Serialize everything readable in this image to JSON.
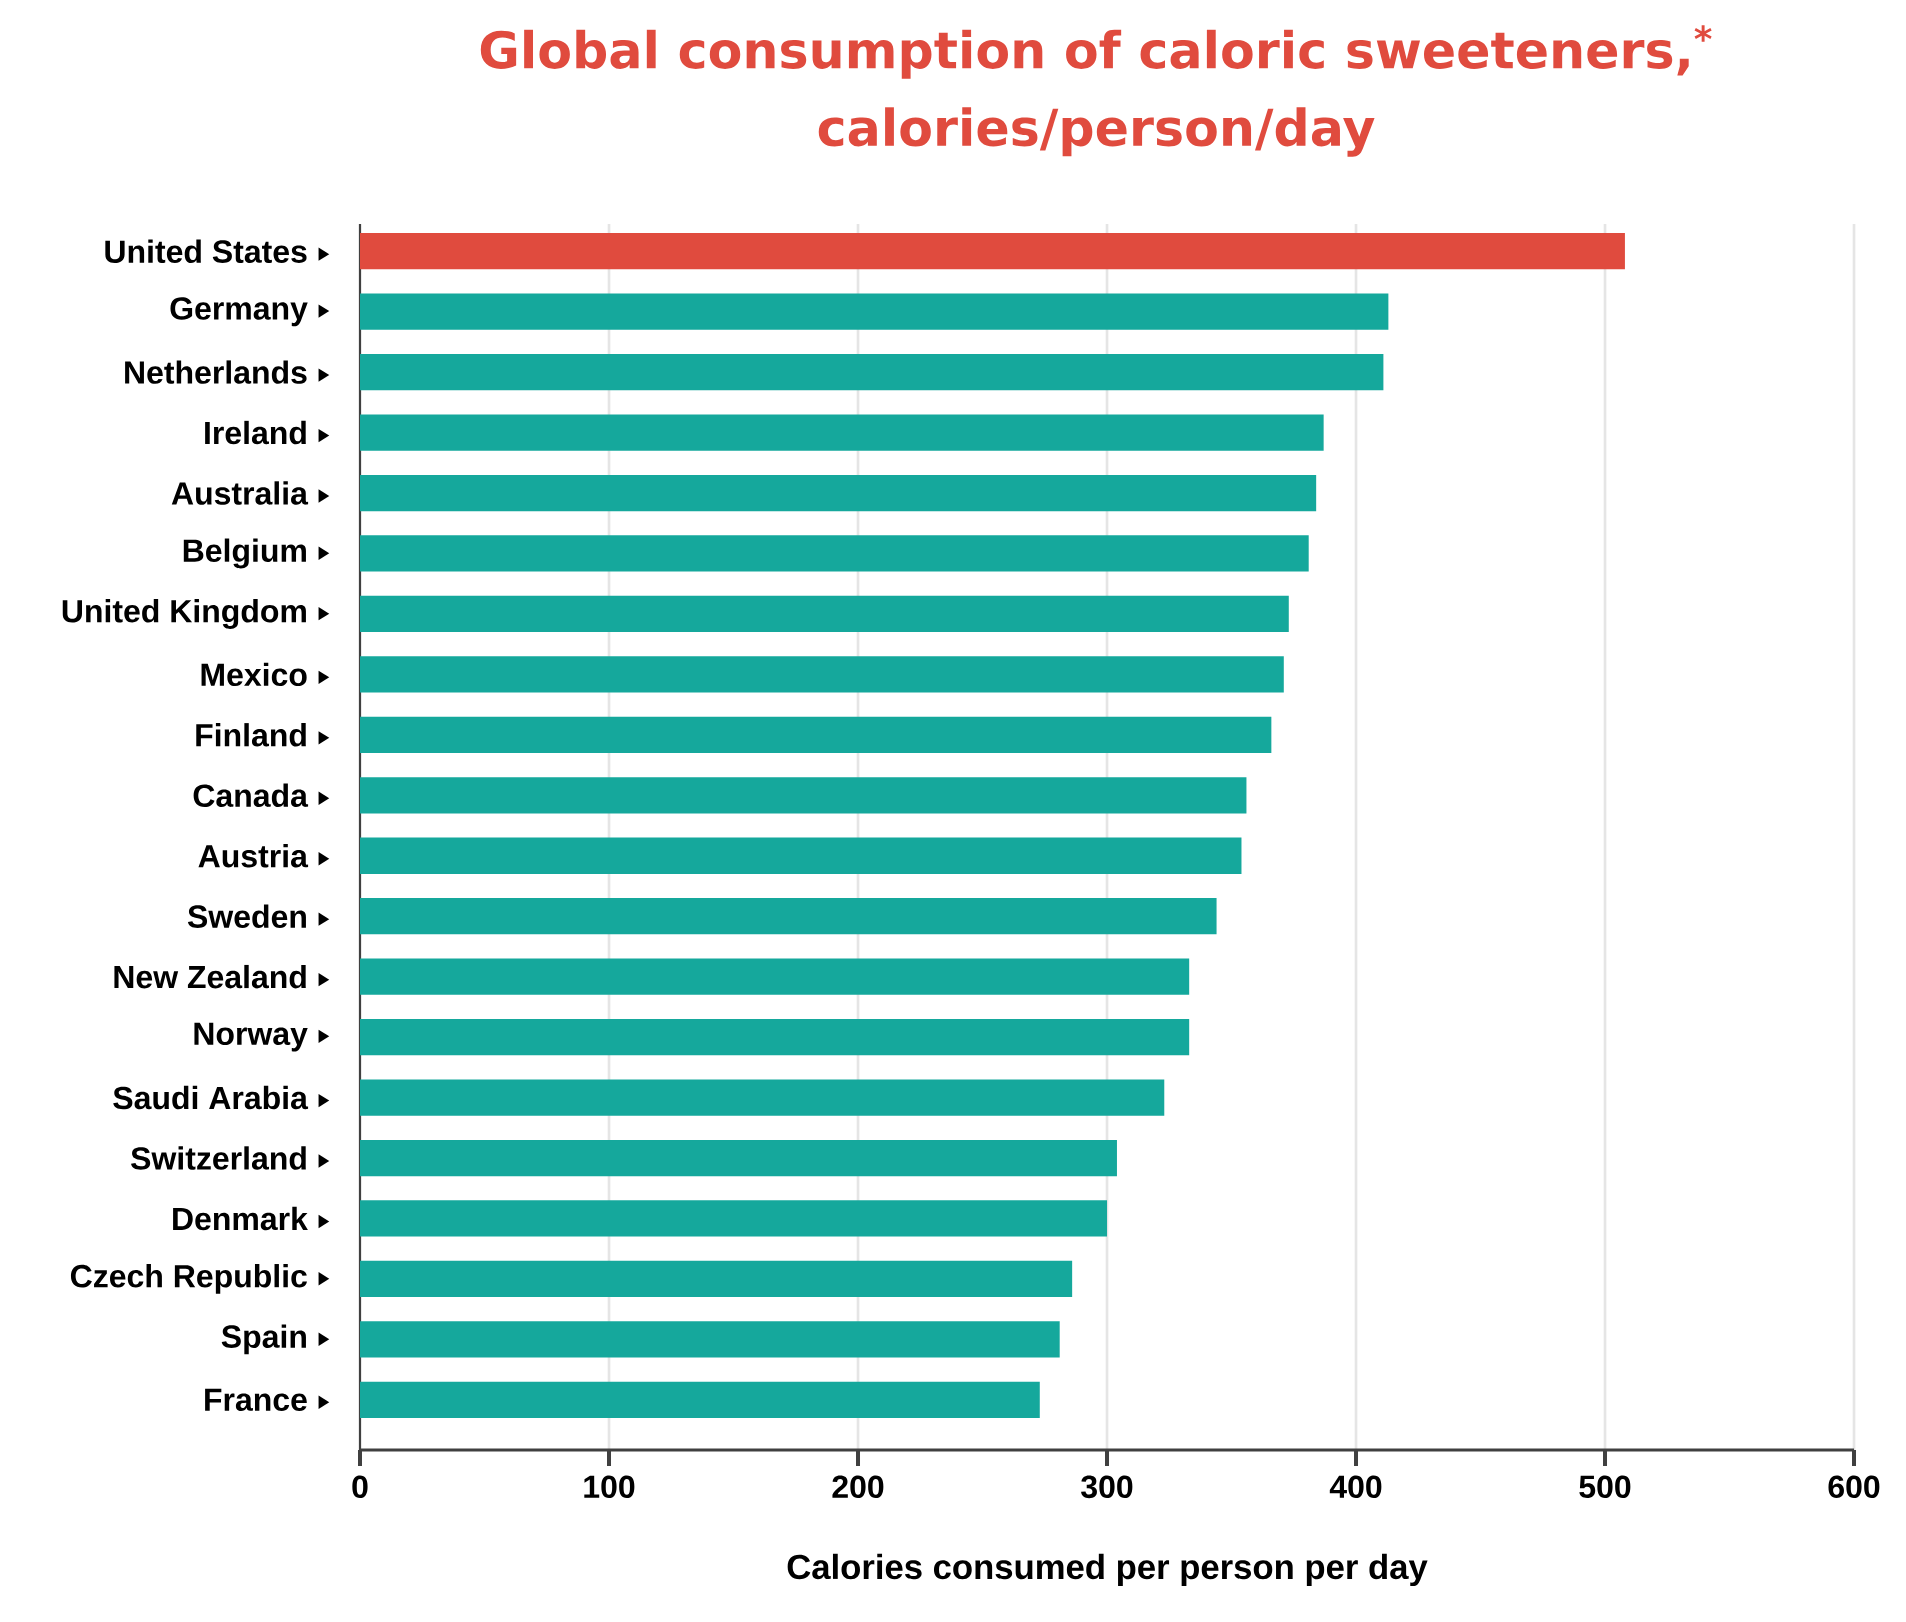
{
  "chart_data": {
    "type": "bar",
    "orientation": "horizontal",
    "title": "Global consumption of caloric sweeteners,$^{*}$",
    "subtitle": "calories/person/day",
    "xlabel": "Calories consumed per person per day",
    "categories": [
      "United States",
      "Germany",
      "Netherlands",
      "Ireland",
      "Australia",
      "Belgium",
      "United Kingdom",
      "Mexico",
      "Finland",
      "Canada",
      "Austria",
      "Sweden",
      "New Zealand",
      "Norway",
      "Saudi Arabia",
      "Switzerland",
      "Denmark",
      "Czech Republic",
      "Spain",
      "France"
    ],
    "values": [
      508,
      413,
      411,
      387,
      384,
      381,
      373,
      371,
      366,
      356,
      354,
      344,
      333,
      333,
      323,
      304,
      300,
      286,
      281,
      273
    ],
    "colors": [
      "#e04b3e",
      "#15a89c",
      "#15a89c",
      "#15a89c",
      "#15a89c",
      "#15a89c",
      "#15a89c",
      "#15a89c",
      "#15a89c",
      "#15a89c",
      "#15a89c",
      "#15a89c",
      "#15a89c",
      "#15a89c",
      "#15a89c",
      "#15a89c",
      "#15a89c",
      "#15a89c",
      "#15a89c",
      "#15a89c"
    ],
    "xlim": [
      0,
      600
    ],
    "xticks": [
      0,
      100,
      200,
      300,
      400,
      500,
      600
    ],
    "grid": "x"
  }
}
